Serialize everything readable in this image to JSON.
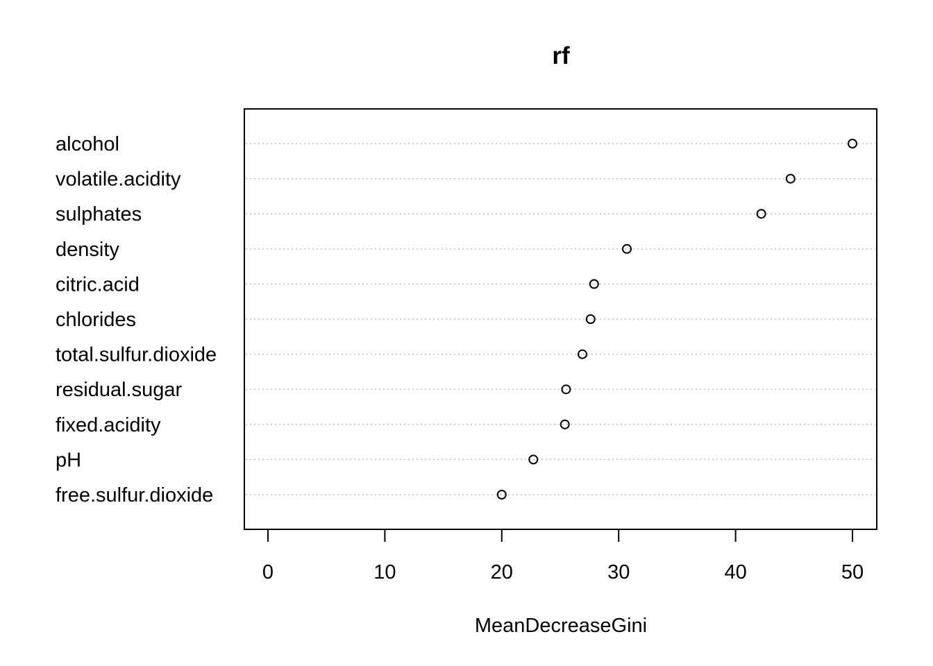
{
  "chart_data": {
    "type": "scatter",
    "title": "rf",
    "xlabel": "MeanDecreaseGini",
    "ylabel": "",
    "xlim": [
      -2,
      52
    ],
    "xticks": [
      0,
      10,
      20,
      30,
      40,
      50
    ],
    "grid": "dotted-horizontal",
    "categories": [
      "alcohol",
      "volatile.acidity",
      "sulphates",
      "density",
      "citric.acid",
      "chlorides",
      "total.sulfur.dioxide",
      "residual.sugar",
      "fixed.acidity",
      "pH",
      "free.sulfur.dioxide"
    ],
    "values": [
      50.0,
      44.7,
      42.2,
      30.7,
      27.9,
      27.6,
      26.9,
      25.5,
      25.4,
      22.7,
      20.0
    ]
  }
}
